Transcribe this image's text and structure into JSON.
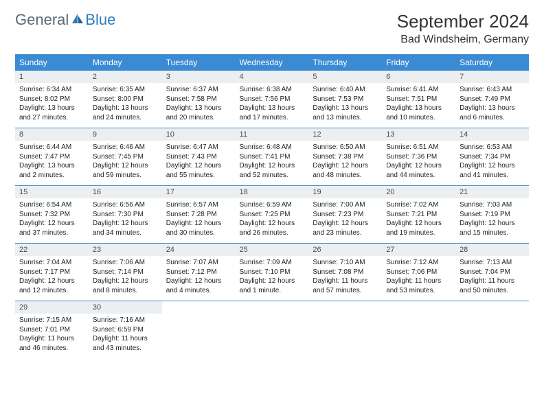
{
  "logo": {
    "gray": "General",
    "blue": "Blue"
  },
  "title": "September 2024",
  "location": "Bad Windsheim, Germany",
  "colors": {
    "header_bg": "#3b8bd4",
    "header_text": "#ffffff",
    "daynum_bg": "#eceff1",
    "logo_gray": "#5a6a7a",
    "logo_blue": "#2b7bbf"
  },
  "weekdays": [
    "Sunday",
    "Monday",
    "Tuesday",
    "Wednesday",
    "Thursday",
    "Friday",
    "Saturday"
  ],
  "weeks": [
    [
      {
        "n": "1",
        "sr": "Sunrise: 6:34 AM",
        "ss": "Sunset: 8:02 PM",
        "d1": "Daylight: 13 hours",
        "d2": "and 27 minutes."
      },
      {
        "n": "2",
        "sr": "Sunrise: 6:35 AM",
        "ss": "Sunset: 8:00 PM",
        "d1": "Daylight: 13 hours",
        "d2": "and 24 minutes."
      },
      {
        "n": "3",
        "sr": "Sunrise: 6:37 AM",
        "ss": "Sunset: 7:58 PM",
        "d1": "Daylight: 13 hours",
        "d2": "and 20 minutes."
      },
      {
        "n": "4",
        "sr": "Sunrise: 6:38 AM",
        "ss": "Sunset: 7:56 PM",
        "d1": "Daylight: 13 hours",
        "d2": "and 17 minutes."
      },
      {
        "n": "5",
        "sr": "Sunrise: 6:40 AM",
        "ss": "Sunset: 7:53 PM",
        "d1": "Daylight: 13 hours",
        "d2": "and 13 minutes."
      },
      {
        "n": "6",
        "sr": "Sunrise: 6:41 AM",
        "ss": "Sunset: 7:51 PM",
        "d1": "Daylight: 13 hours",
        "d2": "and 10 minutes."
      },
      {
        "n": "7",
        "sr": "Sunrise: 6:43 AM",
        "ss": "Sunset: 7:49 PM",
        "d1": "Daylight: 13 hours",
        "d2": "and 6 minutes."
      }
    ],
    [
      {
        "n": "8",
        "sr": "Sunrise: 6:44 AM",
        "ss": "Sunset: 7:47 PM",
        "d1": "Daylight: 13 hours",
        "d2": "and 2 minutes."
      },
      {
        "n": "9",
        "sr": "Sunrise: 6:46 AM",
        "ss": "Sunset: 7:45 PM",
        "d1": "Daylight: 12 hours",
        "d2": "and 59 minutes."
      },
      {
        "n": "10",
        "sr": "Sunrise: 6:47 AM",
        "ss": "Sunset: 7:43 PM",
        "d1": "Daylight: 12 hours",
        "d2": "and 55 minutes."
      },
      {
        "n": "11",
        "sr": "Sunrise: 6:48 AM",
        "ss": "Sunset: 7:41 PM",
        "d1": "Daylight: 12 hours",
        "d2": "and 52 minutes."
      },
      {
        "n": "12",
        "sr": "Sunrise: 6:50 AM",
        "ss": "Sunset: 7:38 PM",
        "d1": "Daylight: 12 hours",
        "d2": "and 48 minutes."
      },
      {
        "n": "13",
        "sr": "Sunrise: 6:51 AM",
        "ss": "Sunset: 7:36 PM",
        "d1": "Daylight: 12 hours",
        "d2": "and 44 minutes."
      },
      {
        "n": "14",
        "sr": "Sunrise: 6:53 AM",
        "ss": "Sunset: 7:34 PM",
        "d1": "Daylight: 12 hours",
        "d2": "and 41 minutes."
      }
    ],
    [
      {
        "n": "15",
        "sr": "Sunrise: 6:54 AM",
        "ss": "Sunset: 7:32 PM",
        "d1": "Daylight: 12 hours",
        "d2": "and 37 minutes."
      },
      {
        "n": "16",
        "sr": "Sunrise: 6:56 AM",
        "ss": "Sunset: 7:30 PM",
        "d1": "Daylight: 12 hours",
        "d2": "and 34 minutes."
      },
      {
        "n": "17",
        "sr": "Sunrise: 6:57 AM",
        "ss": "Sunset: 7:28 PM",
        "d1": "Daylight: 12 hours",
        "d2": "and 30 minutes."
      },
      {
        "n": "18",
        "sr": "Sunrise: 6:59 AM",
        "ss": "Sunset: 7:25 PM",
        "d1": "Daylight: 12 hours",
        "d2": "and 26 minutes."
      },
      {
        "n": "19",
        "sr": "Sunrise: 7:00 AM",
        "ss": "Sunset: 7:23 PM",
        "d1": "Daylight: 12 hours",
        "d2": "and 23 minutes."
      },
      {
        "n": "20",
        "sr": "Sunrise: 7:02 AM",
        "ss": "Sunset: 7:21 PM",
        "d1": "Daylight: 12 hours",
        "d2": "and 19 minutes."
      },
      {
        "n": "21",
        "sr": "Sunrise: 7:03 AM",
        "ss": "Sunset: 7:19 PM",
        "d1": "Daylight: 12 hours",
        "d2": "and 15 minutes."
      }
    ],
    [
      {
        "n": "22",
        "sr": "Sunrise: 7:04 AM",
        "ss": "Sunset: 7:17 PM",
        "d1": "Daylight: 12 hours",
        "d2": "and 12 minutes."
      },
      {
        "n": "23",
        "sr": "Sunrise: 7:06 AM",
        "ss": "Sunset: 7:14 PM",
        "d1": "Daylight: 12 hours",
        "d2": "and 8 minutes."
      },
      {
        "n": "24",
        "sr": "Sunrise: 7:07 AM",
        "ss": "Sunset: 7:12 PM",
        "d1": "Daylight: 12 hours",
        "d2": "and 4 minutes."
      },
      {
        "n": "25",
        "sr": "Sunrise: 7:09 AM",
        "ss": "Sunset: 7:10 PM",
        "d1": "Daylight: 12 hours",
        "d2": "and 1 minute."
      },
      {
        "n": "26",
        "sr": "Sunrise: 7:10 AM",
        "ss": "Sunset: 7:08 PM",
        "d1": "Daylight: 11 hours",
        "d2": "and 57 minutes."
      },
      {
        "n": "27",
        "sr": "Sunrise: 7:12 AM",
        "ss": "Sunset: 7:06 PM",
        "d1": "Daylight: 11 hours",
        "d2": "and 53 minutes."
      },
      {
        "n": "28",
        "sr": "Sunrise: 7:13 AM",
        "ss": "Sunset: 7:04 PM",
        "d1": "Daylight: 11 hours",
        "d2": "and 50 minutes."
      }
    ],
    [
      {
        "n": "29",
        "sr": "Sunrise: 7:15 AM",
        "ss": "Sunset: 7:01 PM",
        "d1": "Daylight: 11 hours",
        "d2": "and 46 minutes."
      },
      {
        "n": "30",
        "sr": "Sunrise: 7:16 AM",
        "ss": "Sunset: 6:59 PM",
        "d1": "Daylight: 11 hours",
        "d2": "and 43 minutes."
      },
      {
        "empty": true
      },
      {
        "empty": true
      },
      {
        "empty": true
      },
      {
        "empty": true
      },
      {
        "empty": true
      }
    ]
  ]
}
